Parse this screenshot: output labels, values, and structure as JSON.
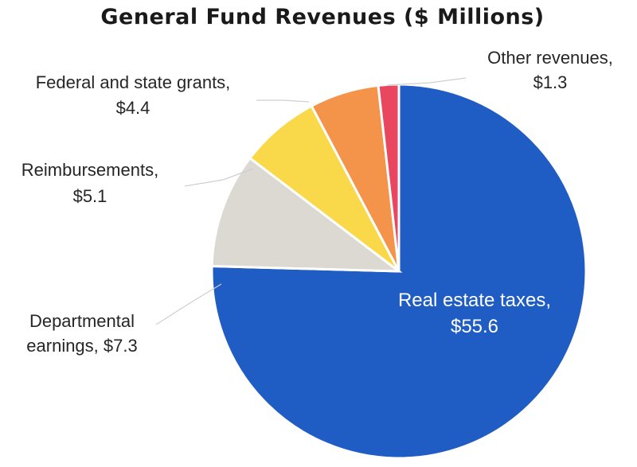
{
  "chart_data": {
    "type": "pie",
    "title": "General Fund Revenues ($ Millions)",
    "start_angle_deg": 0,
    "direction": "clockwise",
    "slices": [
      {
        "name": "Real estate taxes",
        "value": 55.6,
        "label_lines": [
          "Real estate taxes,",
          "$55.6"
        ],
        "color": "#1f5cc4",
        "label_position": "inside"
      },
      {
        "name": "Departmental earnings",
        "value": 7.3,
        "label_lines": [
          "Departmental",
          "earnings, $7.3"
        ],
        "color": "#dcd8d2",
        "label_position": "outside-left"
      },
      {
        "name": "Reimbursements",
        "value": 5.1,
        "label_lines": [
          "Reimbursements,",
          "$5.1"
        ],
        "color": "#f9d84a",
        "label_position": "outside-left"
      },
      {
        "name": "Federal and state grants",
        "value": 4.4,
        "label_lines": [
          "Federal and state grants,",
          "$4.4"
        ],
        "color": "#f4944a",
        "label_position": "outside-top-left"
      },
      {
        "name": "Other revenues",
        "value": 1.3,
        "label_lines": [
          "Other revenues,",
          "$1.3"
        ],
        "color": "#e8475f",
        "label_position": "outside-top-right"
      }
    ]
  }
}
